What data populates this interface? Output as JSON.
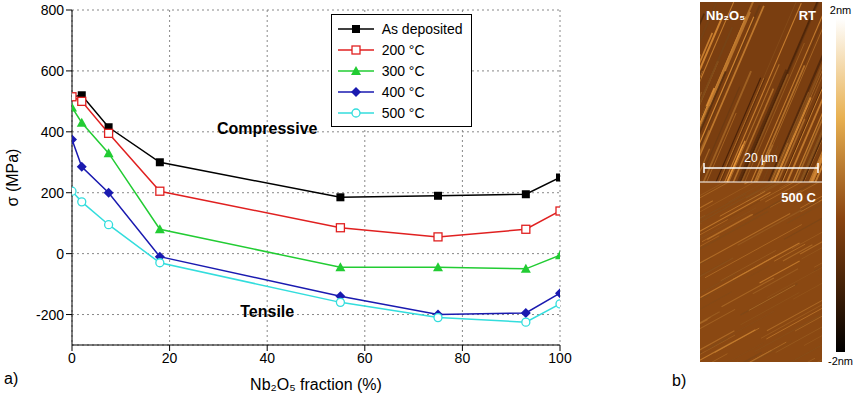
{
  "chart_data": {
    "type": "line",
    "x_label": "Nb₂O₅ fraction (%)",
    "y_label": "σ (MPa)",
    "x": [
      0,
      2,
      7.5,
      18,
      55,
      75,
      93,
      100
    ],
    "xlim": [
      0,
      100
    ],
    "xticks": [
      0,
      20,
      40,
      60,
      80,
      100
    ],
    "ylim": [
      -300,
      800
    ],
    "yticks": [
      -200,
      0,
      200,
      400,
      600,
      800
    ],
    "grid": true,
    "legend": "top-right",
    "annotations": [
      {
        "text": "Compressive",
        "x": 40,
        "y": 410
      },
      {
        "text": "Tensile",
        "x": 40,
        "y": -190
      }
    ],
    "series": [
      {
        "name": "As deposited",
        "color": "#000000",
        "marker": "square",
        "values": [
          515,
          520,
          415,
          300,
          185,
          190,
          195,
          250
        ]
      },
      {
        "name": "200 °C",
        "color": "#e02020",
        "marker": "open-square",
        "values": [
          515,
          500,
          395,
          205,
          85,
          55,
          80,
          140
        ]
      },
      {
        "name": "300 °C",
        "color": "#22cc33",
        "marker": "triangle",
        "values": [
          480,
          430,
          330,
          80,
          -45,
          -45,
          -50,
          -5
        ]
      },
      {
        "name": "400 °C",
        "color": "#1a1ab0",
        "marker": "diamond",
        "values": [
          375,
          285,
          200,
          -10,
          -140,
          -200,
          -195,
          -130
        ]
      },
      {
        "name": "500 °C",
        "color": "#33dddd",
        "marker": "open-circle",
        "values": [
          205,
          170,
          95,
          -30,
          -160,
          -210,
          -225,
          -165
        ]
      }
    ]
  },
  "panel_label": "a)",
  "afm_image": {
    "panel_label": "b)",
    "material": "Nb₂O₅",
    "top_label": "RT",
    "bottom_label": "500 C",
    "scale_bar": "20 µm",
    "colorbar": {
      "range": [
        -2,
        2
      ],
      "ticks": [
        {
          "value": 2,
          "label": "2nm"
        },
        {
          "value": -2,
          "label": "-2nm"
        }
      ]
    }
  }
}
